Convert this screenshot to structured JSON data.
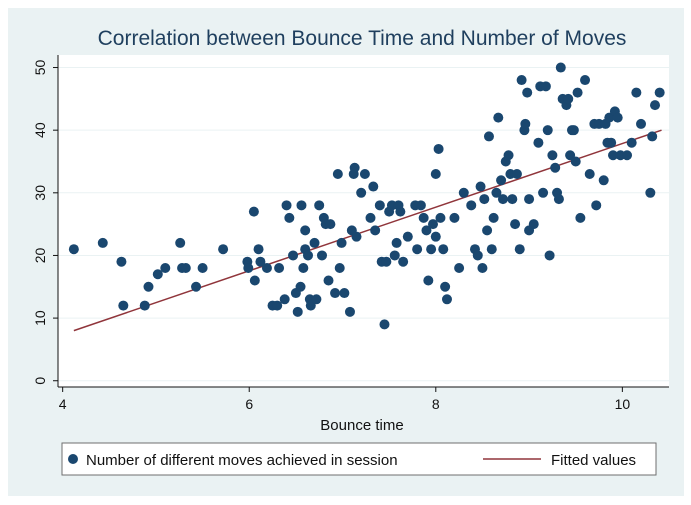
{
  "chart_data": {
    "type": "scatter",
    "title": "Correlation between Bounce Time and Number of Moves",
    "xlabel": "Bounce time",
    "ylabel": "",
    "xlim": [
      3.95,
      10.5
    ],
    "ylim": [
      -1,
      52
    ],
    "x_ticks": [
      4,
      6,
      8,
      10
    ],
    "x_tick_labels": [
      "4",
      "6",
      "8",
      "10"
    ],
    "y_ticks": [
      0,
      10,
      20,
      30,
      40,
      50
    ],
    "y_tick_labels": [
      "0",
      "10",
      "20",
      "30",
      "40",
      "50"
    ],
    "grid": true,
    "legend_position": "bottom",
    "colors": {
      "points": "#1a476f",
      "fit": "#90353b",
      "panel": "#eaf2f3",
      "grid": "#eaf2f3"
    },
    "series": [
      {
        "name": "Number of different moves achieved in session",
        "kind": "scatter",
        "points": [
          [
            4.12,
            21
          ],
          [
            4.43,
            22
          ],
          [
            4.63,
            19
          ],
          [
            4.65,
            12
          ],
          [
            4.88,
            12
          ],
          [
            4.92,
            15
          ],
          [
            5.02,
            17
          ],
          [
            5.1,
            18
          ],
          [
            5.26,
            22
          ],
          [
            5.28,
            18
          ],
          [
            5.32,
            18
          ],
          [
            5.43,
            15
          ],
          [
            5.5,
            18
          ],
          [
            5.72,
            21
          ],
          [
            5.98,
            19
          ],
          [
            5.99,
            18
          ],
          [
            6.05,
            27
          ],
          [
            6.06,
            16
          ],
          [
            6.1,
            21
          ],
          [
            6.12,
            19
          ],
          [
            6.19,
            18
          ],
          [
            6.25,
            12
          ],
          [
            6.3,
            12
          ],
          [
            6.32,
            18
          ],
          [
            6.38,
            13
          ],
          [
            6.4,
            28
          ],
          [
            6.43,
            26
          ],
          [
            6.47,
            20
          ],
          [
            6.5,
            14
          ],
          [
            6.52,
            11
          ],
          [
            6.55,
            15
          ],
          [
            6.56,
            28
          ],
          [
            6.58,
            18
          ],
          [
            6.6,
            24
          ],
          [
            6.6,
            21
          ],
          [
            6.63,
            20
          ],
          [
            6.65,
            13
          ],
          [
            6.66,
            12
          ],
          [
            6.7,
            22
          ],
          [
            6.72,
            13
          ],
          [
            6.75,
            28
          ],
          [
            6.78,
            20
          ],
          [
            6.8,
            26
          ],
          [
            6.82,
            25
          ],
          [
            6.85,
            16
          ],
          [
            6.87,
            25
          ],
          [
            6.92,
            14
          ],
          [
            6.95,
            33
          ],
          [
            6.97,
            18
          ],
          [
            6.99,
            22
          ],
          [
            7.02,
            14
          ],
          [
            7.08,
            11
          ],
          [
            7.1,
            24
          ],
          [
            7.12,
            33
          ],
          [
            7.13,
            34
          ],
          [
            7.15,
            23
          ],
          [
            7.2,
            30
          ],
          [
            7.24,
            33
          ],
          [
            7.3,
            26
          ],
          [
            7.33,
            31
          ],
          [
            7.35,
            24
          ],
          [
            7.4,
            28
          ],
          [
            7.42,
            19
          ],
          [
            7.45,
            9
          ],
          [
            7.47,
            19
          ],
          [
            7.5,
            27
          ],
          [
            7.53,
            28
          ],
          [
            7.56,
            20
          ],
          [
            7.58,
            22
          ],
          [
            7.6,
            28
          ],
          [
            7.62,
            27
          ],
          [
            7.65,
            19
          ],
          [
            7.7,
            23
          ],
          [
            7.78,
            28
          ],
          [
            7.8,
            21
          ],
          [
            7.84,
            28
          ],
          [
            7.87,
            26
          ],
          [
            7.9,
            24
          ],
          [
            7.92,
            16
          ],
          [
            7.95,
            21
          ],
          [
            7.97,
            25
          ],
          [
            8.0,
            23
          ],
          [
            8.0,
            33
          ],
          [
            8.03,
            37
          ],
          [
            8.05,
            26
          ],
          [
            8.08,
            21
          ],
          [
            8.1,
            15
          ],
          [
            8.12,
            13
          ],
          [
            8.2,
            26
          ],
          [
            8.25,
            18
          ],
          [
            8.3,
            30
          ],
          [
            8.38,
            28
          ],
          [
            8.42,
            21
          ],
          [
            8.45,
            20
          ],
          [
            8.48,
            31
          ],
          [
            8.5,
            18
          ],
          [
            8.52,
            29
          ],
          [
            8.55,
            24
          ],
          [
            8.57,
            39
          ],
          [
            8.6,
            21
          ],
          [
            8.62,
            26
          ],
          [
            8.65,
            30
          ],
          [
            8.67,
            42
          ],
          [
            8.7,
            32
          ],
          [
            8.72,
            29
          ],
          [
            8.75,
            35
          ],
          [
            8.78,
            36
          ],
          [
            8.8,
            33
          ],
          [
            8.82,
            29
          ],
          [
            8.85,
            25
          ],
          [
            8.87,
            33
          ],
          [
            8.9,
            21
          ],
          [
            8.92,
            48
          ],
          [
            8.95,
            40
          ],
          [
            8.96,
            41
          ],
          [
            8.98,
            46
          ],
          [
            9.0,
            29
          ],
          [
            9.0,
            24
          ],
          [
            9.05,
            25
          ],
          [
            9.1,
            38
          ],
          [
            9.12,
            47
          ],
          [
            9.15,
            30
          ],
          [
            9.18,
            47
          ],
          [
            9.2,
            40
          ],
          [
            9.22,
            20
          ],
          [
            9.25,
            36
          ],
          [
            9.28,
            34
          ],
          [
            9.3,
            30
          ],
          [
            9.32,
            29
          ],
          [
            9.34,
            50
          ],
          [
            9.36,
            45
          ],
          [
            9.4,
            44
          ],
          [
            9.42,
            45
          ],
          [
            9.44,
            36
          ],
          [
            9.46,
            40
          ],
          [
            9.48,
            40
          ],
          [
            9.5,
            35
          ],
          [
            9.52,
            46
          ],
          [
            9.55,
            26
          ],
          [
            9.6,
            48
          ],
          [
            9.65,
            33
          ],
          [
            9.7,
            41
          ],
          [
            9.72,
            28
          ],
          [
            9.75,
            41
          ],
          [
            9.8,
            32
          ],
          [
            9.82,
            41
          ],
          [
            9.84,
            38
          ],
          [
            9.86,
            42
          ],
          [
            9.88,
            38
          ],
          [
            9.9,
            36
          ],
          [
            9.92,
            43
          ],
          [
            9.95,
            42
          ],
          [
            9.98,
            36
          ],
          [
            10.05,
            36
          ],
          [
            10.1,
            38
          ],
          [
            10.15,
            46
          ],
          [
            10.2,
            41
          ],
          [
            10.3,
            30
          ],
          [
            10.32,
            39
          ],
          [
            10.35,
            44
          ],
          [
            10.4,
            46
          ]
        ]
      },
      {
        "name": "Fitted values",
        "kind": "line",
        "points": [
          [
            4.12,
            8
          ],
          [
            10.42,
            40
          ]
        ]
      }
    ]
  }
}
